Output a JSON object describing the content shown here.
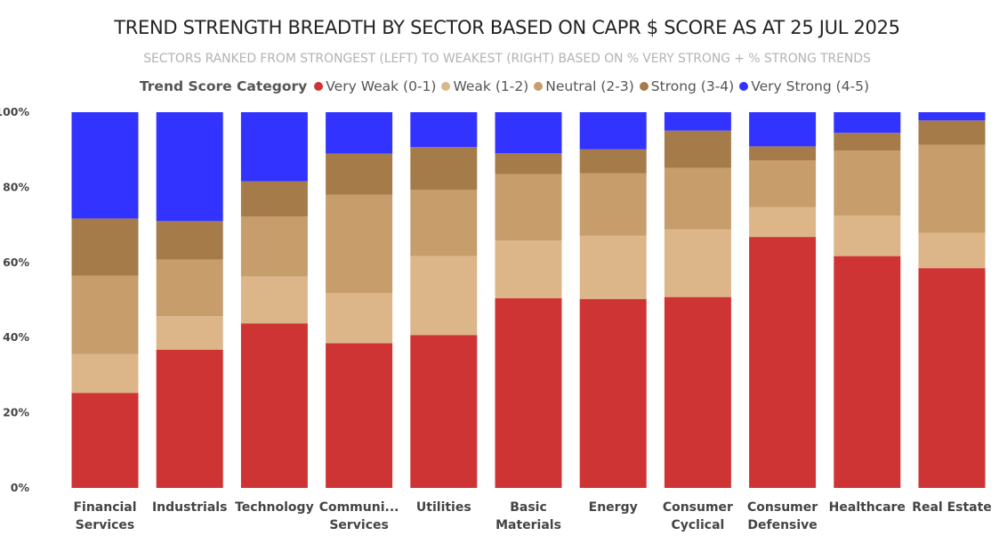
{
  "chart_data": {
    "type": "bar",
    "stacked": true,
    "title": "TREND STRENGTH BREADTH BY SECTOR BASED ON CAPR $ SCORE AS AT 25 JUL 2025",
    "subtitle": "SECTORS RANKED FROM STRONGEST (LEFT) TO WEAKEST (RIGHT) BASED ON % VERY STRONG + % STRONG TRENDS",
    "legend_title": "Trend Score Category",
    "legend_placement": "top-center",
    "categories": [
      [
        "Financial",
        "Services"
      ],
      [
        "Industrials"
      ],
      [
        "Technology"
      ],
      [
        "Communi...",
        "Services"
      ],
      [
        "Utilities"
      ],
      [
        "Basic",
        "Materials"
      ],
      [
        "Energy"
      ],
      [
        "Consumer",
        "Cyclical"
      ],
      [
        "Consumer",
        "Defensive"
      ],
      [
        "Healthcare"
      ],
      [
        "Real Estate"
      ]
    ],
    "series": [
      {
        "name": "Very Weak (0-1)",
        "color": "#cf3434",
        "values": [
          25.3,
          36.8,
          43.8,
          38.5,
          40.7,
          50.5,
          50.3,
          50.8,
          66.8,
          61.7,
          58.5
        ]
      },
      {
        "name": "Weak (1-2)",
        "color": "#dcb689",
        "values": [
          10.3,
          8.9,
          12.5,
          13.4,
          21.0,
          15.3,
          16.8,
          18.0,
          7.9,
          10.8,
          9.4
        ]
      },
      {
        "name": "Neutral (2-3)",
        "color": "#c69d6b",
        "values": [
          20.9,
          15.1,
          15.9,
          26.1,
          17.6,
          17.7,
          16.6,
          16.4,
          12.5,
          17.3,
          23.4
        ]
      },
      {
        "name": "Strong (3-4)",
        "color": "#a67b4a",
        "values": [
          15.2,
          10.2,
          9.4,
          11.0,
          11.4,
          5.6,
          6.4,
          9.9,
          3.7,
          4.7,
          6.5
        ]
      },
      {
        "name": "Very Strong (4-5)",
        "color": "#3333ff",
        "values": [
          28.3,
          29.0,
          18.4,
          11.0,
          9.3,
          10.9,
          9.9,
          4.9,
          9.1,
          5.5,
          2.2
        ]
      }
    ],
    "yticks": [
      "0%",
      "20%",
      "40%",
      "60%",
      "80%",
      "100%"
    ],
    "ylim": [
      0,
      100
    ],
    "grid": false
  }
}
